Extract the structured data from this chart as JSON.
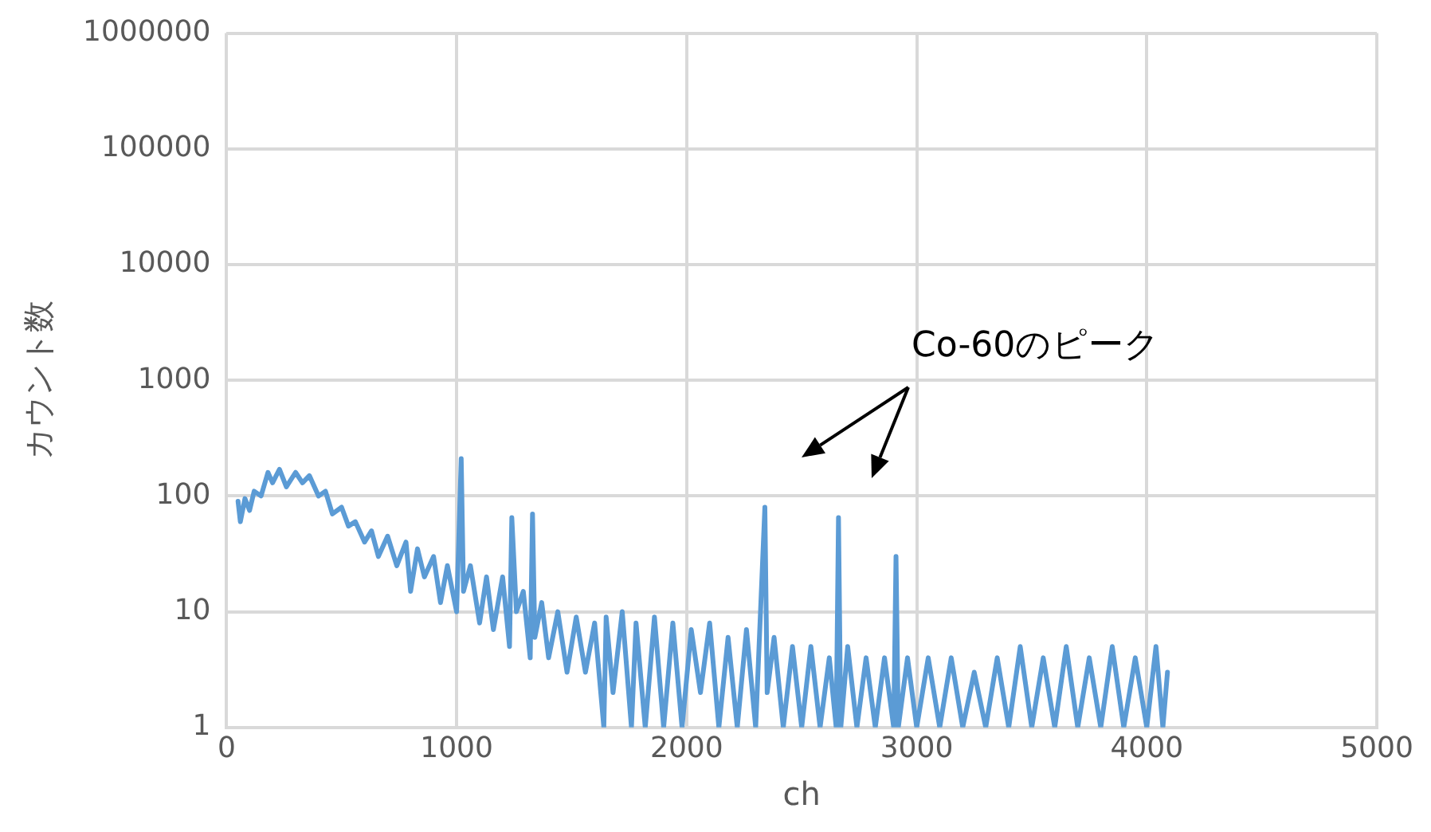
{
  "chart_data": {
    "type": "line",
    "xlabel": "ch",
    "ylabel": "カウント数",
    "log": "y",
    "grid": true,
    "legend": false,
    "marker": "none",
    "line_style": "solid",
    "xlim": [
      0,
      5000
    ],
    "xticks": [
      0,
      1000,
      2000,
      3000,
      4000,
      5000
    ],
    "ylim": [
      1,
      1000000
    ],
    "yticks": [
      1,
      10,
      100,
      1000,
      10000,
      100000,
      1000000
    ],
    "annotations": [
      "Co-60のピーク"
    ],
    "series": [
      {
        "color": "#5b9bd5",
        "x": [
          50,
          60,
          80,
          100,
          120,
          150,
          180,
          200,
          230,
          260,
          300,
          330,
          360,
          400,
          430,
          460,
          500,
          530,
          560,
          600,
          630,
          660,
          700,
          740,
          780,
          800,
          830,
          860,
          900,
          930,
          960,
          1000,
          1020,
          1030,
          1060,
          1100,
          1130,
          1160,
          1200,
          1230,
          1240,
          1260,
          1290,
          1320,
          1330,
          1340,
          1370,
          1400,
          1440,
          1480,
          1520,
          1560,
          1600,
          1640,
          1650,
          1680,
          1720,
          1760,
          1780,
          1820,
          1860,
          1900,
          1940,
          1980,
          2020,
          2060,
          2100,
          2140,
          2180,
          2220,
          2260,
          2300,
          2340,
          2350,
          2380,
          2420,
          2460,
          2500,
          2540,
          2580,
          2620,
          2650,
          2660,
          2670,
          2700,
          2740,
          2780,
          2820,
          2860,
          2900,
          2910,
          2920,
          2960,
          3000,
          3050,
          3100,
          3150,
          3200,
          3250,
          3300,
          3350,
          3400,
          3450,
          3500,
          3550,
          3600,
          3650,
          3700,
          3750,
          3800,
          3850,
          3900,
          3950,
          4000,
          4040,
          4070,
          4090
        ],
        "values": [
          90,
          60,
          95,
          75,
          110,
          100,
          160,
          130,
          170,
          120,
          160,
          130,
          150,
          100,
          110,
          70,
          80,
          55,
          60,
          40,
          50,
          30,
          45,
          25,
          40,
          15,
          35,
          20,
          30,
          12,
          25,
          10,
          210,
          15,
          25,
          8,
          20,
          7,
          20,
          5,
          65,
          10,
          15,
          4,
          70,
          6,
          12,
          4,
          10,
          3,
          9,
          3,
          8,
          1,
          9,
          2,
          10,
          1,
          8,
          1,
          9,
          1,
          8,
          1,
          7,
          2,
          8,
          1,
          6,
          1,
          7,
          1,
          80,
          2,
          6,
          1,
          5,
          1,
          5,
          1,
          4,
          1,
          65,
          1,
          5,
          1,
          4,
          1,
          4,
          1,
          30,
          1,
          4,
          1,
          4,
          1,
          4,
          1,
          3,
          1,
          4,
          1,
          5,
          1,
          4,
          1,
          5,
          1,
          4,
          1,
          5,
          1,
          4,
          1,
          5,
          1,
          3
        ]
      }
    ]
  }
}
